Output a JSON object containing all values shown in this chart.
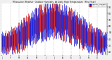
{
  "title": "Milwaukee Weather  Outdoor Humidity  At Daily High Temperature  (Past Year)",
  "legend_blue": "Outdoor Humidity",
  "legend_red": "Daily High Temp",
  "ylim": [
    15,
    95
  ],
  "yticks": [
    20,
    30,
    40,
    50,
    60,
    70,
    80,
    90
  ],
  "background_color": "#f0f0f0",
  "plot_bg": "#ffffff",
  "grid_color": "#888888",
  "n_points": 365,
  "seed": 99,
  "blue_color": "#1010cc",
  "red_color": "#cc1010"
}
